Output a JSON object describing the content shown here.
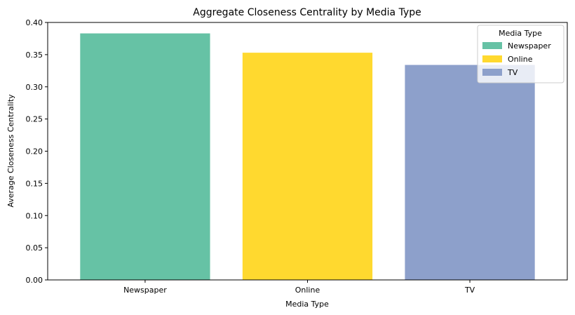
{
  "chart_data": {
    "type": "bar",
    "title": "Aggregate Closeness Centrality by Media Type",
    "xlabel": "Media Type",
    "ylabel": "Average Closeness Centrality",
    "categories": [
      "Newspaper",
      "Online",
      "TV"
    ],
    "values": [
      0.383,
      0.353,
      0.334
    ],
    "colors": [
      "#66c2a5",
      "#ffd92f",
      "#8da0cb"
    ],
    "ylim": [
      0,
      0.4
    ],
    "yticks": [
      0.0,
      0.05,
      0.1,
      0.15,
      0.2,
      0.25,
      0.3,
      0.35,
      0.4
    ],
    "ytick_labels": [
      "0.00",
      "0.05",
      "0.10",
      "0.15",
      "0.20",
      "0.25",
      "0.30",
      "0.35",
      "0.40"
    ],
    "grid": false,
    "legend": {
      "title": "Media Type",
      "placement": "top-right",
      "entries": [
        "Newspaper",
        "Online",
        "TV"
      ]
    }
  }
}
